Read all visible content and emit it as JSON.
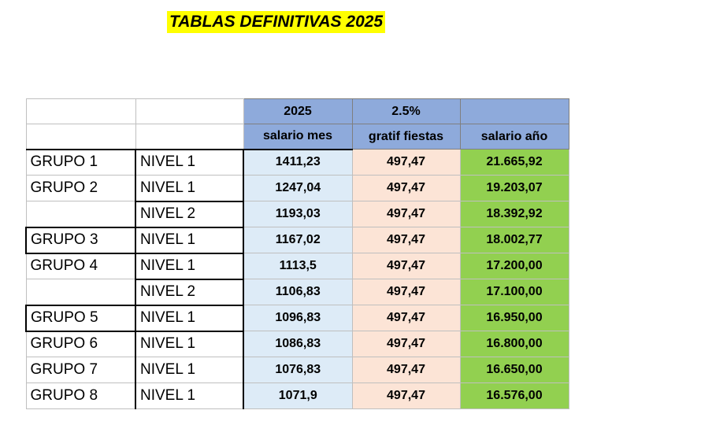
{
  "title": "TABLAS DEFINITIVAS 2025",
  "header": {
    "row1": [
      "2025",
      "2.5%",
      ""
    ],
    "row2": [
      "salario mes",
      "gratif fiestas",
      "salario año"
    ]
  },
  "rows": [
    {
      "grupo": "GRUPO 1",
      "nivel": "NIVEL 1",
      "salario_mes": "1411,23",
      "gratif": "497,47",
      "salario_anio": "21.665,92"
    },
    {
      "grupo": "GRUPO 2",
      "nivel": "NIVEL 1",
      "salario_mes": "1247,04",
      "gratif": "497,47",
      "salario_anio": "19.203,07"
    },
    {
      "grupo": "",
      "nivel": "NIVEL 2",
      "salario_mes": "1193,03",
      "gratif": "497,47",
      "salario_anio": "18.392,92"
    },
    {
      "grupo": "GRUPO 3",
      "nivel": "NIVEL 1",
      "salario_mes": "1167,02",
      "gratif": "497,47",
      "salario_anio": "18.002,77"
    },
    {
      "grupo": "GRUPO 4",
      "nivel": "NIVEL 1",
      "salario_mes": "1113,5",
      "gratif": "497,47",
      "salario_anio": "17.200,00"
    },
    {
      "grupo": "",
      "nivel": "NIVEL 2",
      "salario_mes": "1106,83",
      "gratif": "497,47",
      "salario_anio": "17.100,00"
    },
    {
      "grupo": "GRUPO 5",
      "nivel": "NIVEL 1",
      "salario_mes": "1096,83",
      "gratif": "497,47",
      "salario_anio": "16.950,00"
    },
    {
      "grupo": "GRUPO 6",
      "nivel": "NIVEL 1",
      "salario_mes": "1086,83",
      "gratif": "497,47",
      "salario_anio": "16.800,00"
    },
    {
      "grupo": "GRUPO 7",
      "nivel": "NIVEL 1",
      "salario_mes": "1076,83",
      "gratif": "497,47",
      "salario_anio": "16.650,00"
    },
    {
      "grupo": "GRUPO 8",
      "nivel": "NIVEL 1",
      "salario_mes": "1071,9",
      "gratif": "497,47",
      "salario_anio": "16.576,00"
    }
  ],
  "colors": {
    "title_highlight": "#ffff00",
    "header_blue": "#8eaadb",
    "salario_mes_fill": "#ddebf7",
    "gratif_fill": "#fce4d6",
    "salario_anio_fill": "#92d050"
  }
}
